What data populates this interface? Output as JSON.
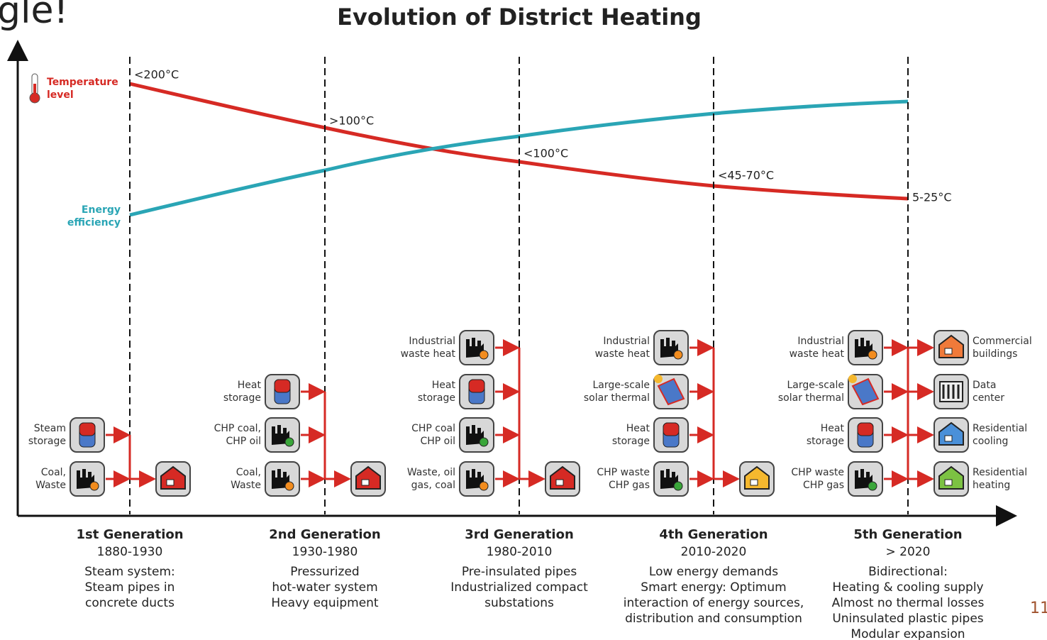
{
  "corner_text": "gle!",
  "page_number": "11",
  "title": "Evolution of District Heating",
  "curves": {
    "temperature": [
      "Temperature",
      "level"
    ],
    "efficiency": [
      "Energy",
      "efficiency"
    ]
  },
  "generations": [
    {
      "name": "1st Generation",
      "years": "1880-1930",
      "temperature": "<200°C",
      "description": [
        "Steam system:",
        "Steam pipes in",
        "concrete ducts"
      ],
      "sources": [
        {
          "label": [
            "Steam",
            "storage"
          ],
          "icon": "tank"
        },
        {
          "label": [
            "Coal,",
            "Waste"
          ],
          "icon": "factory-fire"
        }
      ],
      "sinks": [
        {
          "label": [],
          "icon": "house",
          "color": "#d62a24"
        }
      ]
    },
    {
      "name": "2nd Generation",
      "years": "1930-1980",
      "temperature": ">100°C",
      "description": [
        "Pressurized",
        "hot-water system",
        "Heavy equipment"
      ],
      "sources": [
        {
          "label": [
            "Heat",
            "storage"
          ],
          "icon": "tank"
        },
        {
          "label": [
            "CHP coal,",
            "CHP oil"
          ],
          "icon": "factory-green"
        },
        {
          "label": [
            "Coal,",
            "Waste"
          ],
          "icon": "factory-fire"
        }
      ],
      "sinks": [
        {
          "label": [],
          "icon": "house",
          "color": "#d62a24"
        }
      ]
    },
    {
      "name": "3rd Generation",
      "years": "1980-2010",
      "temperature": "<100°C",
      "description": [
        "Pre-insulated pipes",
        "Industrialized compact",
        "substations"
      ],
      "sources": [
        {
          "label": [
            "Industrial",
            "waste heat"
          ],
          "icon": "factory-fire"
        },
        {
          "label": [
            "Heat",
            "storage"
          ],
          "icon": "tank"
        },
        {
          "label": [
            "CHP coal",
            "CHP oil"
          ],
          "icon": "factory-green"
        },
        {
          "label": [
            "Waste, oil",
            "gas, coal"
          ],
          "icon": "factory-fire"
        }
      ],
      "sinks": [
        {
          "label": [],
          "icon": "house",
          "color": "#d62a24"
        }
      ]
    },
    {
      "name": "4th Generation",
      "years": "2010-2020",
      "temperature": "<45-70°C",
      "description": [
        "Low energy demands",
        "Smart energy: Optimum",
        "interaction of energy sources,",
        "distribution and consumption"
      ],
      "sources": [
        {
          "label": [
            "Industrial",
            "waste heat"
          ],
          "icon": "factory-fire"
        },
        {
          "label": [
            "Large-scale",
            "solar thermal"
          ],
          "icon": "solar"
        },
        {
          "label": [
            "Heat",
            "storage"
          ],
          "icon": "tank"
        },
        {
          "label": [
            "CHP waste",
            "CHP gas"
          ],
          "icon": "factory-green"
        }
      ],
      "sinks": [
        {
          "label": [],
          "icon": "house",
          "color": "#f5b82e"
        }
      ]
    },
    {
      "name": "5th Generation",
      "years": "> 2020",
      "temperature": "5-25°C",
      "description": [
        "Bidirectional:",
        "Heating & cooling supply",
        "Almost no thermal losses",
        "Uninsulated plastic pipes",
        "Modular expansion"
      ],
      "sources": [
        {
          "label": [
            "Industrial",
            "waste heat"
          ],
          "icon": "factory-fire"
        },
        {
          "label": [
            "Large-scale",
            "solar thermal"
          ],
          "icon": "solar"
        },
        {
          "label": [
            "Heat",
            "storage"
          ],
          "icon": "tank"
        },
        {
          "label": [
            "CHP waste",
            "CHP gas"
          ],
          "icon": "factory-green"
        }
      ],
      "sinks": [
        {
          "label": [
            "Commercial",
            "buildings"
          ],
          "icon": "house",
          "color": "#f07a3a"
        },
        {
          "label": [
            "Data",
            "center"
          ],
          "icon": "server",
          "color": "#888888"
        },
        {
          "label": [
            "Residential",
            "cooling"
          ],
          "icon": "house",
          "color": "#4a90d9"
        },
        {
          "label": [
            "Residential",
            "heating"
          ],
          "icon": "house",
          "color": "#7cc242"
        }
      ]
    }
  ]
}
